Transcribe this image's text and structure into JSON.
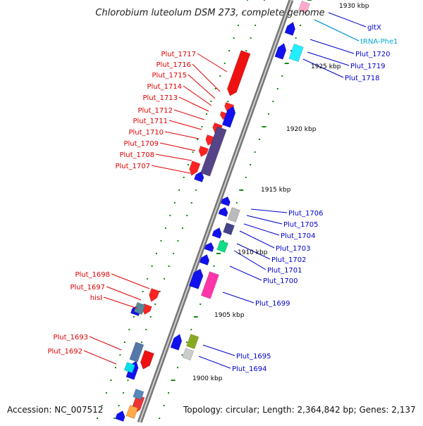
{
  "title": "Chlorobium luteolum DSM 273, complete genome",
  "footer": {
    "accession": "Accession: NC_007512",
    "summary": "Topology: circular; Length: 2,364,842 bp; Genes: 2,137"
  },
  "colors": {
    "left_label": "#dd0000",
    "right_label": "#0000cc",
    "trna_label": "#00aacc",
    "backbone": "#999999",
    "tick": "#118811"
  },
  "ruler": [
    "1930 kbp",
    "1925 kbp",
    "1920 kbp",
    "1915 kbp",
    "1910 kbp",
    "1905 kbp",
    "1900 kbp"
  ],
  "left_labels": [
    "Plut_1717",
    "Plut_1716",
    "Plut_1715",
    "Plut_1714",
    "Plut_1713",
    "Plut_1712",
    "Plut_1711",
    "Plut_1710",
    "Plut_1709",
    "Plut_1708",
    "Plut_1707",
    "Plut_1698",
    "Plut_1697",
    "hisI",
    "Plut_1693",
    "Plut_1692"
  ],
  "right_labels": [
    "gltX",
    "tRNA-Phe1",
    "Plut_1720",
    "Plut_1719",
    "Plut_1718",
    "Plut_1706",
    "Plut_1705",
    "Plut_1704",
    "Plut_1703",
    "Plut_1702",
    "Plut_1701",
    "Plut_1700",
    "Plut_1699",
    "Plut_1695",
    "Plut_1694"
  ]
}
